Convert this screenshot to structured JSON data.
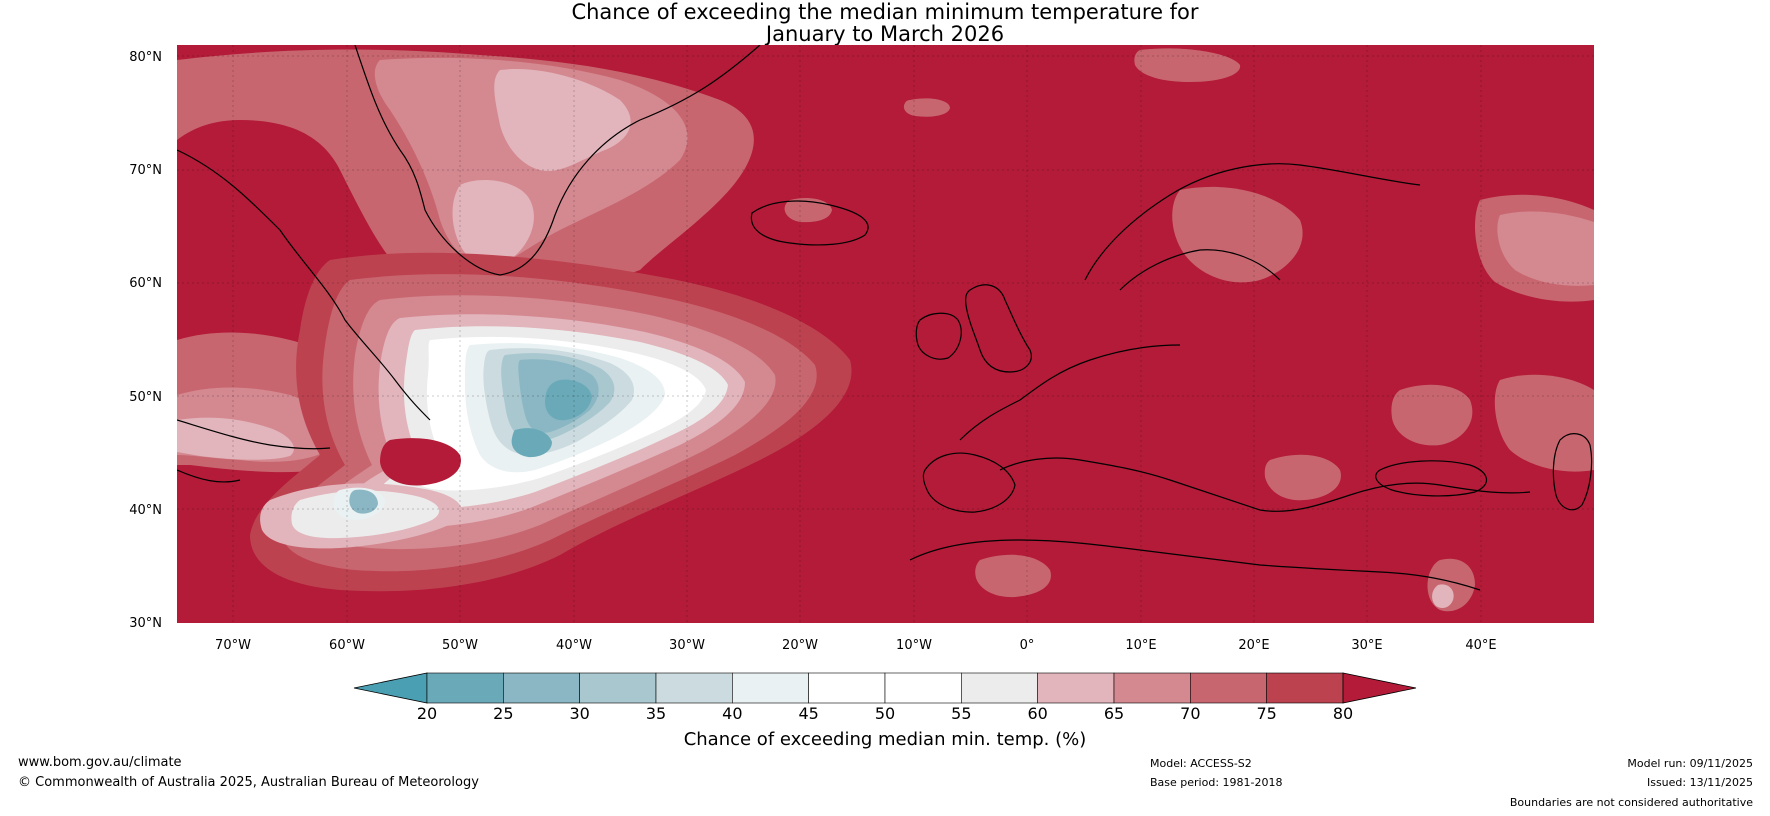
{
  "title": {
    "line1": "Chance of exceeding the median minimum temperature for",
    "line2": "January to March 2026"
  },
  "map": {
    "background_color": "#b31b38",
    "lat_labels": [
      "80°N",
      "70°N",
      "60°N",
      "50°N",
      "40°N",
      "30°N"
    ],
    "lon_labels": [
      "70°W",
      "60°W",
      "50°W",
      "40°W",
      "30°W",
      "20°W",
      "10°W",
      "0°",
      "10°E",
      "20°E",
      "30°E",
      "40°E"
    ],
    "lat_range": [
      30,
      80
    ],
    "lon_range": [
      -75,
      50
    ]
  },
  "colorbar": {
    "title": "Chance of exceeding median min. temp. (%)",
    "ticks": [
      "20",
      "25",
      "30",
      "35",
      "40",
      "45",
      "50",
      "55",
      "60",
      "65",
      "70",
      "75",
      "80"
    ],
    "colors": [
      "#6aaab8",
      "#8ab7c3",
      "#a8c7cf",
      "#ccdbe0",
      "#e9f1f2",
      "#ffffff",
      "#ffffff",
      "#ececec",
      "#e2b4bb",
      "#d48890",
      "#c8666f",
      "#bd4250"
    ],
    "low_color": "#4a9fb2",
    "high_color": "#b31b38"
  },
  "footer": {
    "website": "www.bom.gov.au/climate",
    "copyright": "© Commonwealth of Australia 2025, Australian Bureau of Meteorology",
    "model": "Model: ACCESS-S2",
    "base_period": "Base period: 1981-2018",
    "model_run": "Model run: 09/11/2025",
    "issued": "Issued: 13/11/2025",
    "disclaimer": "Boundaries are not considered authoritative"
  }
}
